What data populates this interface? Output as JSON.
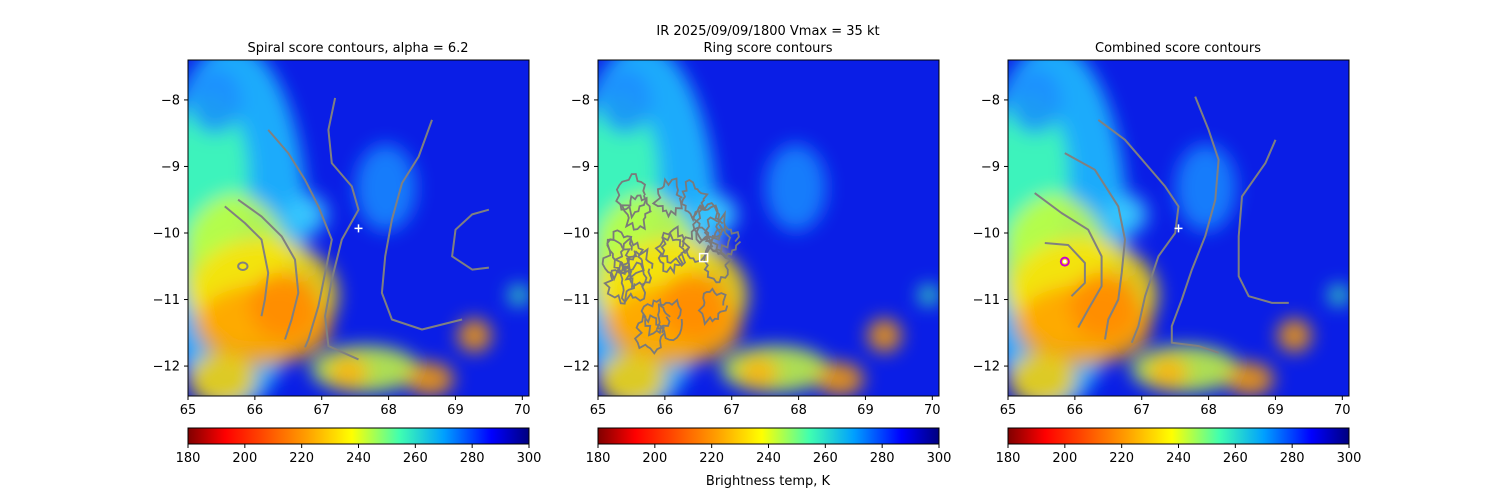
{
  "suptitle_line1": "IR  2025/09/09/1800    Vmax = 35 kt",
  "colorbar_label": "Brightness temp, K",
  "chart_data": [
    {
      "type": "heatmap",
      "title": "Spiral score contours, alpha =  6.2",
      "xlim": [
        65,
        70.1
      ],
      "ylim": [
        -12.45,
        -7.4
      ],
      "xticks": [
        "65",
        "66",
        "67",
        "68",
        "69",
        "70"
      ],
      "yticks": [
        "−8",
        "−9",
        "−10",
        "−11",
        "−12"
      ],
      "colorbar": {
        "min": 180,
        "max": 300,
        "ticks": [
          "180",
          "200",
          "220",
          "240",
          "260",
          "280",
          "300"
        ],
        "colormap": "jet_r"
      },
      "marker": {
        "symbol": "plus",
        "x": 67.55,
        "y": -9.93,
        "color": "#ffffff"
      },
      "contours": [
        [
          [
            65.55,
            -9.6
          ],
          [
            65.85,
            -9.85
          ],
          [
            66.1,
            -10.1
          ],
          [
            66.2,
            -10.6
          ],
          [
            66.15,
            -11.0
          ],
          [
            66.1,
            -11.25
          ]
        ],
        [
          [
            65.75,
            -9.5
          ],
          [
            66.1,
            -9.75
          ],
          [
            66.4,
            -10.05
          ],
          [
            66.6,
            -10.4
          ],
          [
            66.65,
            -10.9
          ],
          [
            66.55,
            -11.3
          ],
          [
            66.45,
            -11.6
          ]
        ],
        [
          [
            66.2,
            -8.45
          ],
          [
            66.5,
            -8.8
          ],
          [
            66.75,
            -9.2
          ],
          [
            66.95,
            -9.6
          ],
          [
            67.15,
            -10.1
          ],
          [
            67.05,
            -10.6
          ],
          [
            66.95,
            -11.1
          ],
          [
            66.8,
            -11.6
          ],
          [
            66.75,
            -11.72
          ]
        ],
        [
          [
            67.2,
            -7.97
          ],
          [
            67.1,
            -8.45
          ],
          [
            67.15,
            -8.95
          ],
          [
            67.45,
            -9.3
          ],
          [
            67.55,
            -9.65
          ],
          [
            67.3,
            -10.1
          ],
          [
            67.15,
            -10.7
          ],
          [
            67.05,
            -11.25
          ],
          [
            67.1,
            -11.7
          ],
          [
            67.55,
            -11.9
          ]
        ],
        [
          [
            68.65,
            -8.3
          ],
          [
            68.45,
            -8.85
          ],
          [
            68.2,
            -9.25
          ],
          [
            68.05,
            -9.8
          ],
          [
            67.95,
            -10.35
          ],
          [
            67.9,
            -10.9
          ],
          [
            68.05,
            -11.3
          ],
          [
            68.5,
            -11.45
          ],
          [
            69.1,
            -11.3
          ]
        ],
        [
          [
            69.5,
            -9.65
          ],
          [
            69.25,
            -9.72
          ],
          [
            69.0,
            -9.95
          ],
          [
            68.95,
            -10.35
          ],
          [
            69.25,
            -10.55
          ],
          [
            69.5,
            -10.52
          ]
        ]
      ],
      "rings": [
        {
          "x": 65.82,
          "y": -10.5,
          "r": 0.07
        }
      ]
    },
    {
      "type": "heatmap",
      "title": "Ring score contours",
      "xlim": [
        65,
        70.1
      ],
      "ylim": [
        -12.45,
        -7.4
      ],
      "xticks": [
        "65",
        "66",
        "67",
        "68",
        "69",
        "70"
      ],
      "yticks": [
        "−8",
        "−9",
        "−10",
        "−11",
        "−12"
      ],
      "colorbar": {
        "min": 180,
        "max": 300,
        "ticks": [
          "180",
          "200",
          "220",
          "240",
          "260",
          "280",
          "300"
        ],
        "colormap": "jet_r"
      },
      "marker": {
        "symbol": "square",
        "x": 66.58,
        "y": -10.37,
        "color": "#ffffff"
      },
      "contour_blob": {
        "x": [
          65.3,
          67.0
        ],
        "y": [
          -9.2,
          -11.5
        ]
      }
    },
    {
      "type": "heatmap",
      "title": "Combined score contours",
      "xlim": [
        65,
        70.1
      ],
      "ylim": [
        -12.45,
        -7.4
      ],
      "xticks": [
        "65",
        "66",
        "67",
        "68",
        "69",
        "70"
      ],
      "yticks": [
        "−8",
        "−9",
        "−10",
        "−11",
        "−12"
      ],
      "colorbar": {
        "min": 180,
        "max": 300,
        "ticks": [
          "180",
          "200",
          "220",
          "240",
          "260",
          "280",
          "300"
        ],
        "colormap": "jet_r"
      },
      "marker": {
        "symbol": "plus",
        "x": 67.55,
        "y": -9.93,
        "color": "#ffffff"
      },
      "marker2": {
        "symbol": "circle",
        "x": 65.85,
        "y": -10.43,
        "color": "#cc00cc"
      },
      "contours": [
        [
          [
            65.55,
            -10.15
          ],
          [
            65.9,
            -10.18
          ],
          [
            66.15,
            -10.45
          ],
          [
            66.15,
            -10.75
          ],
          [
            65.95,
            -10.95
          ]
        ],
        [
          [
            65.4,
            -9.4
          ],
          [
            65.8,
            -9.7
          ],
          [
            66.2,
            -9.95
          ],
          [
            66.4,
            -10.35
          ],
          [
            66.4,
            -10.8
          ],
          [
            66.2,
            -11.15
          ],
          [
            66.05,
            -11.42
          ]
        ],
        [
          [
            65.85,
            -8.8
          ],
          [
            66.3,
            -9.05
          ],
          [
            66.65,
            -9.6
          ],
          [
            66.75,
            -10.1
          ],
          [
            66.7,
            -10.6
          ],
          [
            66.65,
            -11.0
          ],
          [
            66.5,
            -11.3
          ],
          [
            66.45,
            -11.6
          ]
        ],
        [
          [
            66.35,
            -8.3
          ],
          [
            66.75,
            -8.6
          ],
          [
            67.05,
            -8.95
          ],
          [
            67.35,
            -9.3
          ],
          [
            67.55,
            -9.6
          ],
          [
            67.5,
            -10.0
          ],
          [
            67.25,
            -10.35
          ],
          [
            67.05,
            -10.95
          ],
          [
            66.95,
            -11.4
          ],
          [
            66.85,
            -11.65
          ]
        ],
        [
          [
            67.8,
            -7.95
          ],
          [
            68.0,
            -8.45
          ],
          [
            68.15,
            -8.9
          ],
          [
            68.1,
            -9.5
          ],
          [
            67.95,
            -10.05
          ],
          [
            67.75,
            -10.55
          ],
          [
            67.6,
            -11.0
          ],
          [
            67.45,
            -11.4
          ],
          [
            67.45,
            -11.65
          ],
          [
            67.85,
            -11.7
          ],
          [
            68.15,
            -11.8
          ]
        ],
        [
          [
            69.0,
            -8.6
          ],
          [
            68.85,
            -8.95
          ],
          [
            68.5,
            -9.45
          ],
          [
            68.45,
            -10.05
          ],
          [
            68.45,
            -10.65
          ],
          [
            68.6,
            -10.95
          ],
          [
            68.95,
            -11.05
          ],
          [
            69.2,
            -11.05
          ]
        ]
      ]
    }
  ]
}
